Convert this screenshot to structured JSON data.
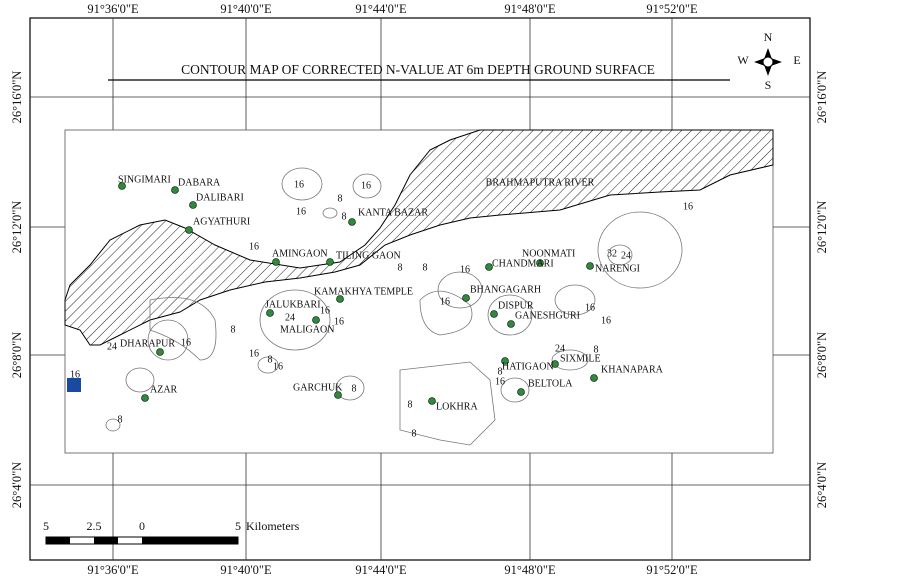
{
  "title": "CONTOUR MAP OF CORRECTED N-VALUE AT 6m DEPTH GROUND SURFACE",
  "top_labels": [
    "91°36'0\"E",
    "91°40'0\"E",
    "91°44'0\"E",
    "91°48'0\"E",
    "91°52'0\"E"
  ],
  "bottom_labels": [
    "91°36'0\"E",
    "91°40'0\"E",
    "91°44'0\"E",
    "91°48'0\"E",
    "91°52'0\"E"
  ],
  "left_labels": [
    "26°16'0\"N",
    "26°12'0\"N",
    "26°8'0\"N",
    "26°4'0\"N"
  ],
  "right_labels": [
    "26°16'0\"N",
    "26°12'0\"N",
    "26°8'0\"N",
    "26°4'0\"N"
  ],
  "compass": [
    "N",
    "E",
    "S",
    "W"
  ],
  "river": "BRAHMAPUTRA RIVER",
  "places": [
    "SINGIMARI",
    "DABARA",
    "DALIBARI",
    "AGYATHURI",
    "AMINGAON",
    "TILING GAON",
    "KANTA BAZAR",
    "KAMAKHYA TEMPLE",
    "JALUKBARI",
    "MALIGAON",
    "DHARAPUR",
    "AZAR",
    "GARCHUK",
    "LOKHRA",
    "NOONMATI",
    "CHANDMARI",
    "NARENGI",
    "BHANGAGARH",
    "DISPUR",
    "GANESHGURI",
    "SIXMILE",
    "HATIGAON",
    "KHANAPARA",
    "BELTOLA"
  ],
  "contour_labels": [
    16,
    16,
    8,
    16,
    8,
    16,
    16,
    8,
    16,
    16,
    24,
    16,
    8,
    8,
    16,
    24,
    8,
    16,
    32,
    24,
    16,
    16,
    16,
    24,
    8,
    16,
    8,
    8,
    16,
    8,
    16,
    8,
    8
  ],
  "scale": {
    "ticks": [
      "5",
      "2.5",
      "0",
      "5"
    ],
    "unit": "Kilometers"
  }
}
